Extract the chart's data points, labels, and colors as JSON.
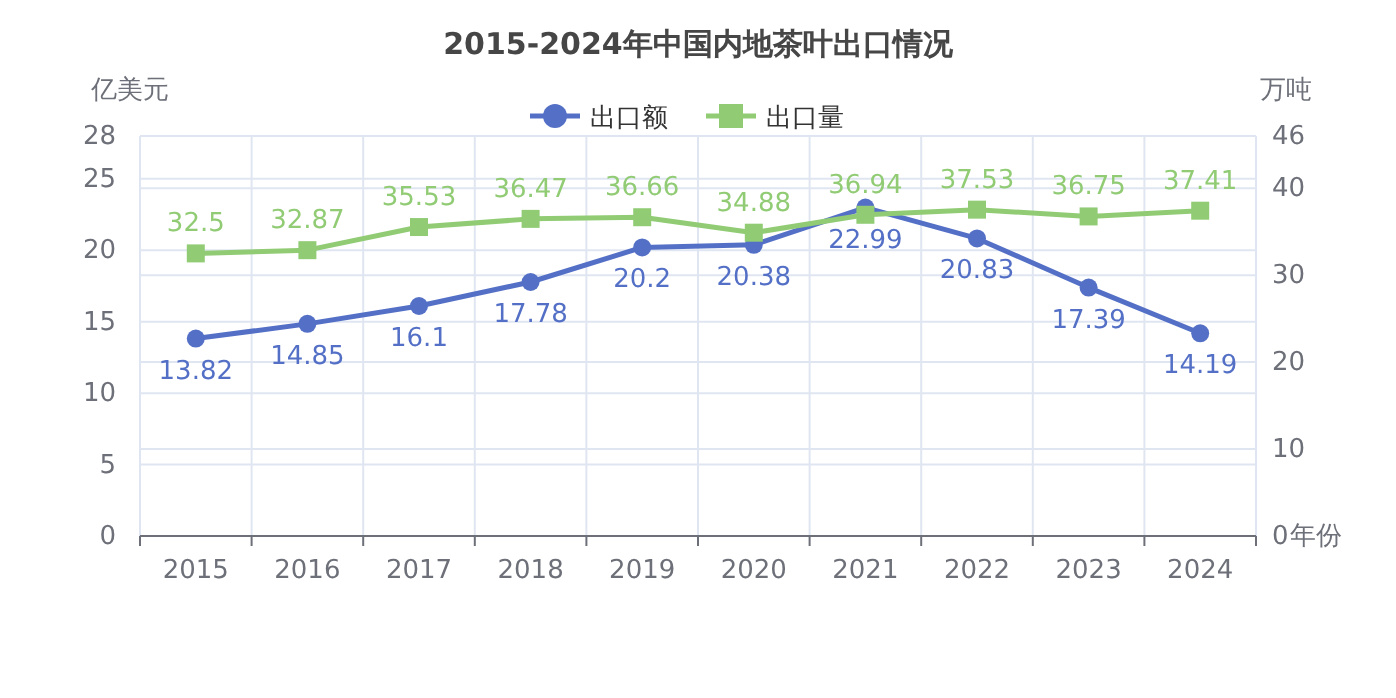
{
  "chart_data": {
    "type": "line",
    "title": "2015-2024年中国内地茶叶出口情况",
    "ylabel": "亿美元",
    "y2label": "万吨",
    "xlabel": "年份",
    "categories": [
      "2015",
      "2016",
      "2017",
      "2018",
      "2019",
      "2020",
      "2021",
      "2022",
      "2023",
      "2024"
    ],
    "series": [
      {
        "name": "出口额",
        "color": "#5470c6",
        "marker": "circle",
        "values": [
          13.82,
          14.85,
          16.1,
          17.78,
          20.2,
          20.38,
          22.99,
          20.83,
          17.39,
          14.19
        ]
      },
      {
        "name": "出口量",
        "color": "#91cc75",
        "marker": "square",
        "axis": "y2",
        "values": [
          32.5,
          32.87,
          35.53,
          36.47,
          36.66,
          34.88,
          36.94,
          37.53,
          36.75,
          37.41
        ]
      }
    ],
    "ylim": [
      0,
      28
    ],
    "yticks": [
      0,
      5,
      10,
      15,
      20,
      25,
      28
    ],
    "y2lim": [
      0,
      46
    ],
    "y2ticks": [
      0,
      10,
      20,
      30,
      40,
      46
    ],
    "grid": true,
    "legend": "top",
    "data_labels": true
  }
}
